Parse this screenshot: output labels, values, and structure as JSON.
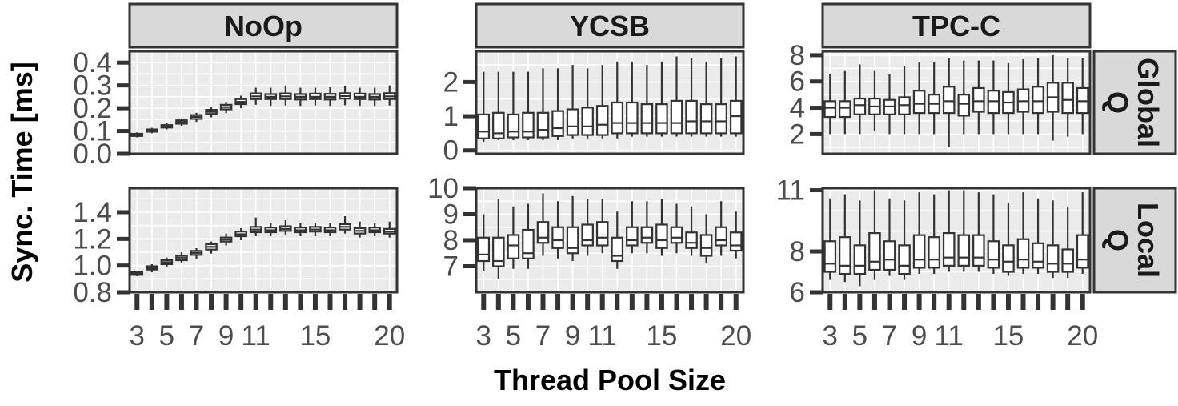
{
  "chart_data": {
    "type": "boxplot",
    "xlabel": "Thread Pool Size",
    "ylabel": "Sync. Time [ms]",
    "columns": [
      "NoOp",
      "YCSB",
      "TPC-C"
    ],
    "rows": [
      "Global Q",
      "Local Q"
    ],
    "x": [
      3,
      4,
      5,
      6,
      7,
      8,
      9,
      10,
      11,
      12,
      13,
      14,
      15,
      16,
      17,
      18,
      19,
      20
    ],
    "x_tick_labels": [
      "3",
      "5",
      "7",
      "9",
      "11",
      "15",
      "20"
    ],
    "grid": true,
    "panels": [
      {
        "column": "NoOp",
        "row": "Global Q",
        "ylim": [
          0,
          0.45
        ],
        "yticks": [
          "0.0",
          "0.1",
          "0.2",
          "0.3",
          "0.4"
        ],
        "boxes": [
          {
            "x": 3,
            "q1": 0.078,
            "med": 0.083,
            "q3": 0.088,
            "lo": 0.072,
            "hi": 0.094
          },
          {
            "x": 4,
            "q1": 0.097,
            "med": 0.102,
            "q3": 0.107,
            "lo": 0.09,
            "hi": 0.114
          },
          {
            "x": 5,
            "q1": 0.115,
            "med": 0.12,
            "q3": 0.126,
            "lo": 0.107,
            "hi": 0.134
          },
          {
            "x": 6,
            "q1": 0.132,
            "med": 0.14,
            "q3": 0.147,
            "lo": 0.123,
            "hi": 0.156
          },
          {
            "x": 7,
            "q1": 0.153,
            "med": 0.162,
            "q3": 0.17,
            "lo": 0.14,
            "hi": 0.18
          },
          {
            "x": 8,
            "q1": 0.175,
            "med": 0.184,
            "q3": 0.193,
            "lo": 0.16,
            "hi": 0.205
          },
          {
            "x": 9,
            "q1": 0.195,
            "med": 0.205,
            "q3": 0.215,
            "lo": 0.178,
            "hi": 0.228
          },
          {
            "x": 10,
            "q1": 0.218,
            "med": 0.228,
            "q3": 0.24,
            "lo": 0.2,
            "hi": 0.255
          },
          {
            "x": 11,
            "q1": 0.24,
            "med": 0.252,
            "q3": 0.265,
            "lo": 0.215,
            "hi": 0.29
          },
          {
            "x": 12,
            "q1": 0.24,
            "med": 0.25,
            "q3": 0.262,
            "lo": 0.21,
            "hi": 0.29
          },
          {
            "x": 13,
            "q1": 0.24,
            "med": 0.252,
            "q3": 0.265,
            "lo": 0.212,
            "hi": 0.3
          },
          {
            "x": 14,
            "q1": 0.238,
            "med": 0.25,
            "q3": 0.262,
            "lo": 0.21,
            "hi": 0.29
          },
          {
            "x": 15,
            "q1": 0.24,
            "med": 0.25,
            "q3": 0.264,
            "lo": 0.212,
            "hi": 0.29
          },
          {
            "x": 16,
            "q1": 0.238,
            "med": 0.25,
            "q3": 0.263,
            "lo": 0.21,
            "hi": 0.292
          },
          {
            "x": 17,
            "q1": 0.242,
            "med": 0.253,
            "q3": 0.266,
            "lo": 0.213,
            "hi": 0.298
          },
          {
            "x": 18,
            "q1": 0.24,
            "med": 0.25,
            "q3": 0.264,
            "lo": 0.21,
            "hi": 0.29
          },
          {
            "x": 19,
            "q1": 0.238,
            "med": 0.25,
            "q3": 0.262,
            "lo": 0.21,
            "hi": 0.29
          },
          {
            "x": 20,
            "q1": 0.24,
            "med": 0.252,
            "q3": 0.266,
            "lo": 0.212,
            "hi": 0.3
          }
        ]
      },
      {
        "column": "YCSB",
        "row": "Global Q",
        "ylim": [
          -0.1,
          2.9
        ],
        "yticks": [
          "0",
          "1",
          "2"
        ],
        "boxes": [
          {
            "x": 3,
            "q1": 0.35,
            "med": 0.55,
            "q3": 1.05,
            "lo": 0.25,
            "hi": 2.3
          },
          {
            "x": 4,
            "q1": 0.35,
            "med": 0.5,
            "q3": 1.1,
            "lo": 0.3,
            "hi": 2.3
          },
          {
            "x": 5,
            "q1": 0.38,
            "med": 0.55,
            "q3": 1.05,
            "lo": 0.3,
            "hi": 2.3
          },
          {
            "x": 6,
            "q1": 0.38,
            "med": 0.55,
            "q3": 1.1,
            "lo": 0.3,
            "hi": 2.3
          },
          {
            "x": 7,
            "q1": 0.38,
            "med": 0.6,
            "q3": 1.1,
            "lo": 0.3,
            "hi": 2.4
          },
          {
            "x": 8,
            "q1": 0.42,
            "med": 0.65,
            "q3": 1.15,
            "lo": 0.3,
            "hi": 2.4
          },
          {
            "x": 9,
            "q1": 0.45,
            "med": 0.7,
            "q3": 1.2,
            "lo": 0.35,
            "hi": 2.5
          },
          {
            "x": 10,
            "q1": 0.45,
            "med": 0.7,
            "q3": 1.25,
            "lo": 0.35,
            "hi": 2.4
          },
          {
            "x": 11,
            "q1": 0.45,
            "med": 0.75,
            "q3": 1.3,
            "lo": 0.35,
            "hi": 2.5
          },
          {
            "x": 12,
            "q1": 0.5,
            "med": 0.8,
            "q3": 1.4,
            "lo": 0.35,
            "hi": 2.6
          },
          {
            "x": 13,
            "q1": 0.5,
            "med": 0.8,
            "q3": 1.4,
            "lo": 0.4,
            "hi": 2.6
          },
          {
            "x": 14,
            "q1": 0.5,
            "med": 0.8,
            "q3": 1.35,
            "lo": 0.4,
            "hi": 2.5
          },
          {
            "x": 15,
            "q1": 0.5,
            "med": 0.8,
            "q3": 1.35,
            "lo": 0.4,
            "hi": 2.6
          },
          {
            "x": 16,
            "q1": 0.5,
            "med": 0.8,
            "q3": 1.45,
            "lo": 0.4,
            "hi": 2.75
          },
          {
            "x": 17,
            "q1": 0.5,
            "med": 0.85,
            "q3": 1.45,
            "lo": 0.4,
            "hi": 2.7
          },
          {
            "x": 18,
            "q1": 0.5,
            "med": 0.85,
            "q3": 1.35,
            "lo": 0.4,
            "hi": 2.6
          },
          {
            "x": 19,
            "q1": 0.5,
            "med": 0.85,
            "q3": 1.35,
            "lo": 0.4,
            "hi": 2.7
          },
          {
            "x": 20,
            "q1": 0.5,
            "med": 1.0,
            "q3": 1.45,
            "lo": 0.4,
            "hi": 2.75
          }
        ]
      },
      {
        "column": "TPC-C",
        "row": "Global Q",
        "ylim": [
          0.5,
          8.3
        ],
        "yticks": [
          "2",
          "4",
          "6",
          "8"
        ],
        "boxes": [
          {
            "x": 3,
            "q1": 3.3,
            "med": 4.0,
            "q3": 4.5,
            "lo": 2.0,
            "hi": 6.6
          },
          {
            "x": 4,
            "q1": 3.3,
            "med": 4.0,
            "q3": 4.5,
            "lo": 2.0,
            "hi": 6.8
          },
          {
            "x": 5,
            "q1": 3.5,
            "med": 4.2,
            "q3": 4.7,
            "lo": 2.0,
            "hi": 7.3
          },
          {
            "x": 6,
            "q1": 3.5,
            "med": 4.1,
            "q3": 4.7,
            "lo": 2.2,
            "hi": 6.8
          },
          {
            "x": 7,
            "q1": 3.5,
            "med": 4.1,
            "q3": 4.6,
            "lo": 2.0,
            "hi": 6.6
          },
          {
            "x": 8,
            "q1": 3.5,
            "med": 4.2,
            "q3": 4.8,
            "lo": 2.0,
            "hi": 7.2
          },
          {
            "x": 9,
            "q1": 3.6,
            "med": 4.3,
            "q3": 5.3,
            "lo": 2.0,
            "hi": 7.5
          },
          {
            "x": 10,
            "q1": 3.6,
            "med": 4.3,
            "q3": 5.0,
            "lo": 2.0,
            "hi": 7.5
          },
          {
            "x": 11,
            "q1": 3.6,
            "med": 4.5,
            "q3": 5.6,
            "lo": 1.0,
            "hi": 7.8
          },
          {
            "x": 12,
            "q1": 3.4,
            "med": 4.3,
            "q3": 5.0,
            "lo": 2.0,
            "hi": 7.6
          },
          {
            "x": 13,
            "q1": 3.7,
            "med": 4.5,
            "q3": 5.5,
            "lo": 2.0,
            "hi": 7.6
          },
          {
            "x": 14,
            "q1": 3.6,
            "med": 4.5,
            "q3": 5.3,
            "lo": 2.0,
            "hi": 7.6
          },
          {
            "x": 15,
            "q1": 3.6,
            "med": 4.4,
            "q3": 5.2,
            "lo": 2.0,
            "hi": 7.4
          },
          {
            "x": 16,
            "q1": 3.7,
            "med": 4.5,
            "q3": 5.4,
            "lo": 2.0,
            "hi": 7.7
          },
          {
            "x": 17,
            "q1": 3.6,
            "med": 4.5,
            "q3": 5.6,
            "lo": 2.0,
            "hi": 7.8
          },
          {
            "x": 18,
            "q1": 3.7,
            "med": 4.8,
            "q3": 5.9,
            "lo": 1.5,
            "hi": 8.0
          },
          {
            "x": 19,
            "q1": 3.6,
            "med": 4.6,
            "q3": 5.9,
            "lo": 1.8,
            "hi": 7.8
          },
          {
            "x": 20,
            "q1": 3.6,
            "med": 4.5,
            "q3": 5.5,
            "lo": 2.0,
            "hi": 7.8
          }
        ]
      },
      {
        "column": "NoOp",
        "row": "Local Q",
        "ylim": [
          0.8,
          1.58
        ],
        "yticks": [
          "0.8",
          "1.0",
          "1.2",
          "1.4"
        ],
        "boxes": [
          {
            "x": 3,
            "q1": 0.93,
            "med": 0.94,
            "q3": 0.95,
            "lo": 0.92,
            "hi": 0.96
          },
          {
            "x": 4,
            "q1": 0.97,
            "med": 0.98,
            "q3": 0.995,
            "lo": 0.95,
            "hi": 1.01
          },
          {
            "x": 5,
            "q1": 1.01,
            "med": 1.025,
            "q3": 1.04,
            "lo": 0.99,
            "hi": 1.06
          },
          {
            "x": 6,
            "q1": 1.04,
            "med": 1.06,
            "q3": 1.075,
            "lo": 1.02,
            "hi": 1.1
          },
          {
            "x": 7,
            "q1": 1.08,
            "med": 1.095,
            "q3": 1.11,
            "lo": 1.05,
            "hi": 1.13
          },
          {
            "x": 8,
            "q1": 1.12,
            "med": 1.14,
            "q3": 1.16,
            "lo": 1.09,
            "hi": 1.18
          },
          {
            "x": 9,
            "q1": 1.18,
            "med": 1.195,
            "q3": 1.21,
            "lo": 1.15,
            "hi": 1.24
          },
          {
            "x": 10,
            "q1": 1.22,
            "med": 1.235,
            "q3": 1.255,
            "lo": 1.19,
            "hi": 1.28
          },
          {
            "x": 11,
            "q1": 1.25,
            "med": 1.27,
            "q3": 1.29,
            "lo": 1.22,
            "hi": 1.36
          },
          {
            "x": 12,
            "q1": 1.25,
            "med": 1.265,
            "q3": 1.285,
            "lo": 1.22,
            "hi": 1.32
          },
          {
            "x": 13,
            "q1": 1.26,
            "med": 1.275,
            "q3": 1.295,
            "lo": 1.23,
            "hi": 1.34
          },
          {
            "x": 14,
            "q1": 1.25,
            "med": 1.265,
            "q3": 1.285,
            "lo": 1.22,
            "hi": 1.32
          },
          {
            "x": 15,
            "q1": 1.255,
            "med": 1.27,
            "q3": 1.29,
            "lo": 1.22,
            "hi": 1.32
          },
          {
            "x": 16,
            "q1": 1.25,
            "med": 1.265,
            "q3": 1.285,
            "lo": 1.22,
            "hi": 1.32
          },
          {
            "x": 17,
            "q1": 1.27,
            "med": 1.29,
            "q3": 1.31,
            "lo": 1.24,
            "hi": 1.37
          },
          {
            "x": 18,
            "q1": 1.24,
            "med": 1.26,
            "q3": 1.28,
            "lo": 1.21,
            "hi": 1.33
          },
          {
            "x": 19,
            "q1": 1.25,
            "med": 1.265,
            "q3": 1.285,
            "lo": 1.22,
            "hi": 1.32
          },
          {
            "x": 20,
            "q1": 1.24,
            "med": 1.255,
            "q3": 1.275,
            "lo": 1.21,
            "hi": 1.33
          }
        ]
      },
      {
        "column": "YCSB",
        "row": "Local Q",
        "ylim": [
          6.0,
          10.0
        ],
        "yticks": [
          "7",
          "8",
          "9",
          "10"
        ],
        "boxes": [
          {
            "x": 3,
            "q1": 7.2,
            "med": 7.45,
            "q3": 8.1,
            "lo": 6.8,
            "hi": 9.0
          },
          {
            "x": 4,
            "q1": 7.0,
            "med": 7.2,
            "q3": 8.1,
            "lo": 6.5,
            "hi": 9.6
          },
          {
            "x": 5,
            "q1": 7.3,
            "med": 7.8,
            "q3": 8.2,
            "lo": 6.9,
            "hi": 9.3
          },
          {
            "x": 6,
            "q1": 7.3,
            "med": 7.5,
            "q3": 8.4,
            "lo": 6.9,
            "hi": 9.4
          },
          {
            "x": 7,
            "q1": 7.9,
            "med": 8.1,
            "q3": 8.7,
            "lo": 7.4,
            "hi": 9.8
          },
          {
            "x": 8,
            "q1": 7.7,
            "med": 8.0,
            "q3": 8.5,
            "lo": 7.3,
            "hi": 9.5
          },
          {
            "x": 9,
            "q1": 7.5,
            "med": 7.7,
            "q3": 8.5,
            "lo": 7.2,
            "hi": 9.7
          },
          {
            "x": 10,
            "q1": 7.8,
            "med": 8.0,
            "q3": 8.6,
            "lo": 7.4,
            "hi": 9.6
          },
          {
            "x": 11,
            "q1": 7.8,
            "med": 8.1,
            "q3": 8.7,
            "lo": 7.5,
            "hi": 9.6
          },
          {
            "x": 12,
            "q1": 7.2,
            "med": 7.4,
            "q3": 8.1,
            "lo": 6.9,
            "hi": 9.1
          },
          {
            "x": 13,
            "q1": 7.8,
            "med": 8.0,
            "q3": 8.5,
            "lo": 7.5,
            "hi": 9.5
          },
          {
            "x": 14,
            "q1": 7.9,
            "med": 8.1,
            "q3": 8.5,
            "lo": 7.5,
            "hi": 9.5
          },
          {
            "x": 15,
            "q1": 7.7,
            "med": 8.0,
            "q3": 8.6,
            "lo": 7.4,
            "hi": 9.6
          },
          {
            "x": 16,
            "q1": 7.9,
            "med": 8.1,
            "q3": 8.5,
            "lo": 7.5,
            "hi": 9.4
          },
          {
            "x": 17,
            "q1": 7.7,
            "med": 7.9,
            "q3": 8.3,
            "lo": 7.4,
            "hi": 9.3
          },
          {
            "x": 18,
            "q1": 7.4,
            "med": 7.7,
            "q3": 8.2,
            "lo": 7.1,
            "hi": 9.0
          },
          {
            "x": 19,
            "q1": 7.8,
            "med": 8.0,
            "q3": 8.5,
            "lo": 7.4,
            "hi": 9.5
          },
          {
            "x": 20,
            "q1": 7.6,
            "med": 7.8,
            "q3": 8.3,
            "lo": 7.3,
            "hi": 9.1
          }
        ]
      },
      {
        "column": "TPC-C",
        "row": "Local Q",
        "ylim": [
          6.0,
          11.1
        ],
        "yticks": [
          "6",
          "8",
          "11"
        ],
        "boxes": [
          {
            "x": 3,
            "q1": 7.0,
            "med": 7.4,
            "q3": 8.5,
            "lo": 6.6,
            "hi": 10.6
          },
          {
            "x": 4,
            "q1": 6.9,
            "med": 7.3,
            "q3": 8.7,
            "lo": 6.5,
            "hi": 10.8
          },
          {
            "x": 5,
            "q1": 6.9,
            "med": 7.3,
            "q3": 8.3,
            "lo": 6.3,
            "hi": 10.5
          },
          {
            "x": 6,
            "q1": 7.1,
            "med": 7.5,
            "q3": 8.9,
            "lo": 6.6,
            "hi": 11.0
          },
          {
            "x": 7,
            "q1": 7.1,
            "med": 7.6,
            "q3": 8.5,
            "lo": 6.8,
            "hi": 10.6
          },
          {
            "x": 8,
            "q1": 6.9,
            "med": 7.3,
            "q3": 8.3,
            "lo": 6.6,
            "hi": 10.5
          },
          {
            "x": 9,
            "q1": 7.2,
            "med": 7.6,
            "q3": 8.8,
            "lo": 6.9,
            "hi": 10.9
          },
          {
            "x": 10,
            "q1": 7.2,
            "med": 7.6,
            "q3": 8.7,
            "lo": 6.9,
            "hi": 10.8
          },
          {
            "x": 11,
            "q1": 7.3,
            "med": 7.7,
            "q3": 8.9,
            "lo": 7.0,
            "hi": 11.0
          },
          {
            "x": 12,
            "q1": 7.3,
            "med": 7.7,
            "q3": 8.8,
            "lo": 7.0,
            "hi": 11.0
          },
          {
            "x": 13,
            "q1": 7.3,
            "med": 7.7,
            "q3": 8.8,
            "lo": 7.0,
            "hi": 10.9
          },
          {
            "x": 14,
            "q1": 7.2,
            "med": 7.6,
            "q3": 8.5,
            "lo": 6.9,
            "hi": 10.8
          },
          {
            "x": 15,
            "q1": 7.0,
            "med": 7.5,
            "q3": 8.3,
            "lo": 6.8,
            "hi": 10.4
          },
          {
            "x": 16,
            "q1": 7.2,
            "med": 7.6,
            "q3": 8.6,
            "lo": 6.9,
            "hi": 10.9
          },
          {
            "x": 17,
            "q1": 7.2,
            "med": 7.5,
            "q3": 8.4,
            "lo": 6.9,
            "hi": 10.6
          },
          {
            "x": 18,
            "q1": 7.0,
            "med": 7.4,
            "q3": 8.3,
            "lo": 6.7,
            "hi": 10.5
          },
          {
            "x": 19,
            "q1": 7.0,
            "med": 7.4,
            "q3": 8.1,
            "lo": 6.7,
            "hi": 10.2
          },
          {
            "x": 20,
            "q1": 7.2,
            "med": 7.6,
            "q3": 8.8,
            "lo": 6.9,
            "hi": 10.9
          }
        ]
      }
    ]
  }
}
